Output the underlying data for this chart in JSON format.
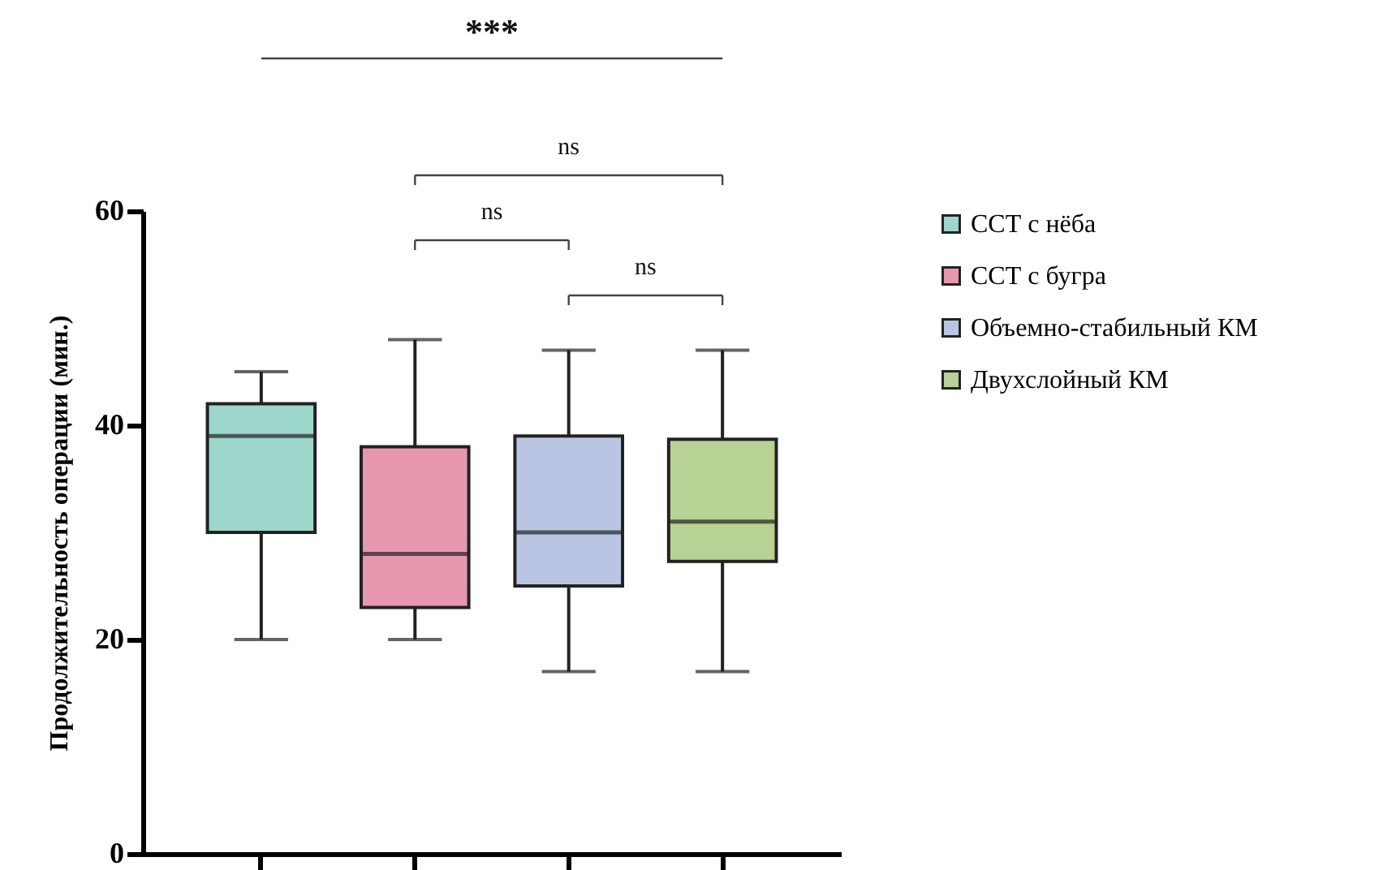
{
  "chart_data": {
    "type": "box",
    "ylabel": "Продолжительность операции (мин.)",
    "categories": [
      null,
      null,
      null,
      null
    ],
    "ylim": [
      0,
      60
    ],
    "yticks": [
      0,
      20,
      40,
      60
    ],
    "tick_labels": "y",
    "grid": false,
    "legend": "right",
    "series": [
      {
        "name": "ССТ с нёба",
        "color": "#9dd6cb",
        "boxes": [
          {
            "low": 20,
            "q1": 30,
            "median": 39,
            "q3": 42,
            "high": 45
          },
          null,
          null,
          null
        ]
      },
      {
        "name": "ССТ с бугра",
        "color": "#e697ae",
        "boxes": [
          null,
          {
            "low": 20,
            "q1": 23,
            "median": 28,
            "q3": 38,
            "high": 48
          },
          null,
          null
        ]
      },
      {
        "name": "Объемно-стабильный КМ",
        "color": "#b9c5e2",
        "boxes": [
          null,
          null,
          {
            "low": 17,
            "q1": 25,
            "median": 30,
            "q3": 39,
            "high": 47
          },
          null
        ]
      },
      {
        "name": "Двухслойный КМ",
        "color": "#b8d194",
        "boxes": [
          null,
          null,
          null,
          {
            "low": 17,
            "q1": 27.3,
            "median": 31,
            "q3": 38.7,
            "high": 47
          }
        ]
      }
    ],
    "annotations": [
      "***",
      "ns",
      "ns",
      "ns"
    ]
  }
}
